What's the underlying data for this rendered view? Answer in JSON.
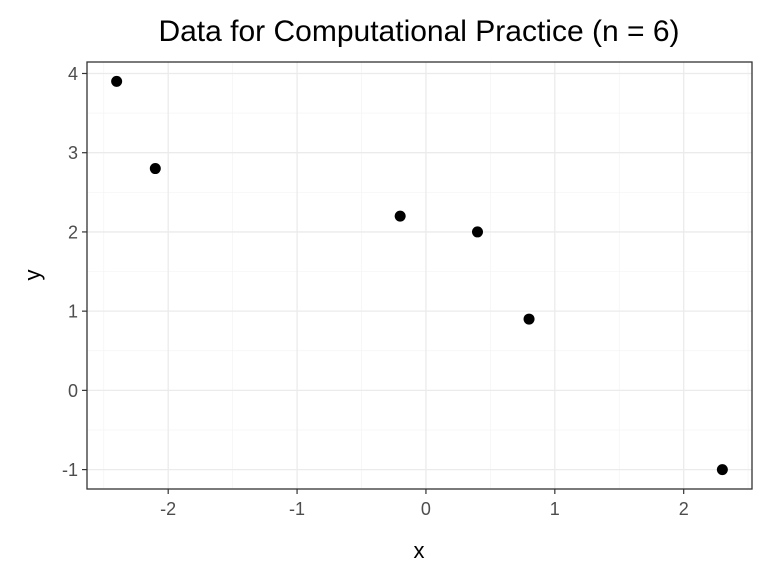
{
  "chart_data": {
    "type": "scatter",
    "title": "Data for Computational Practice (n = 6)",
    "xlabel": "x",
    "ylabel": "y",
    "xlim": [
      -2.63,
      2.53
    ],
    "ylim": [
      -1.245,
      4.145
    ],
    "x_ticks": [
      -2,
      -1,
      0,
      1,
      2
    ],
    "y_ticks": [
      -1,
      0,
      1,
      2,
      3,
      4
    ],
    "x_tick_labels": [
      "-2",
      "-1",
      "0",
      "1",
      "2"
    ],
    "y_tick_labels": [
      "-1",
      "0",
      "1",
      "2",
      "3",
      "4"
    ],
    "grid": true,
    "legend": "none",
    "point_color": "#000000",
    "points": [
      {
        "x": -2.4,
        "y": 3.9
      },
      {
        "x": -2.1,
        "y": 2.8
      },
      {
        "x": -0.2,
        "y": 2.2
      },
      {
        "x": 0.4,
        "y": 2.0
      },
      {
        "x": 0.8,
        "y": 0.9
      },
      {
        "x": 2.3,
        "y": -1.0
      }
    ]
  }
}
